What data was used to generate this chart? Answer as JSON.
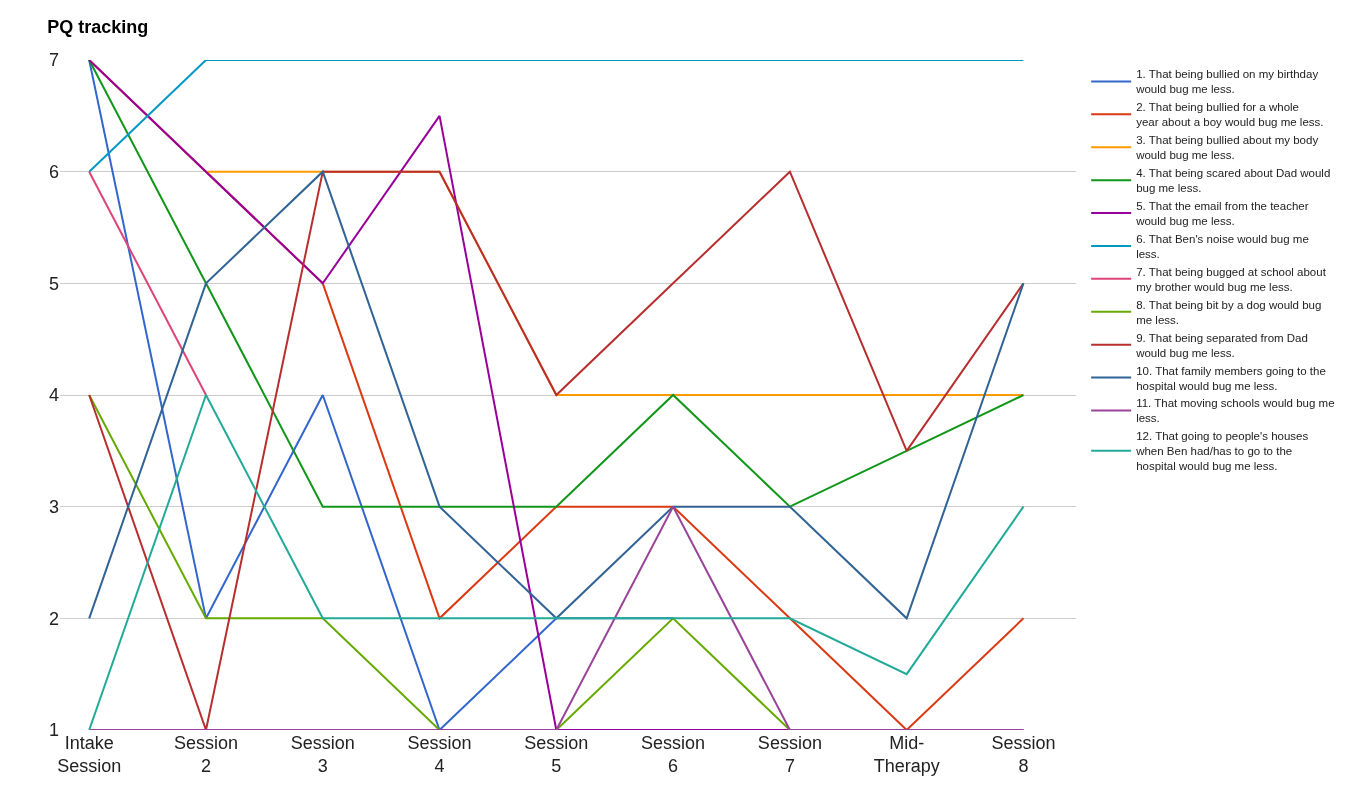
{
  "chart_data": {
    "type": "line",
    "title": "PQ tracking",
    "categories": [
      "Intake Session",
      "Session 2",
      "Session 3",
      "Session 4",
      "Session 5",
      "Session 6",
      "Session 7",
      "Mid-Therapy",
      "Session 8"
    ],
    "ylim": [
      1,
      7
    ],
    "yticks": [
      1,
      2,
      3,
      4,
      5,
      6,
      7
    ],
    "grid": "y",
    "legend": "right",
    "marker": "none",
    "line_style": "solid",
    "series": [
      {
        "name": "1. That being bullied on my birthday would bug me less.",
        "color": "#3366cc",
        "values": [
          7,
          2,
          4,
          1,
          2,
          2,
          null,
          null,
          null
        ]
      },
      {
        "name": "2. That being bullied for a whole year about a boy would bug me less.",
        "color": "#dc3912",
        "values": [
          7,
          6,
          5,
          2,
          3,
          3,
          2,
          1,
          2
        ]
      },
      {
        "name": "3. That being bullied about my body would bug me less.",
        "color": "#ff9900",
        "values": [
          null,
          6,
          6,
          6,
          4,
          4,
          4,
          4,
          4
        ]
      },
      {
        "name": "4. That being scared about Dad would bug me less.",
        "color": "#109618",
        "values": [
          7,
          5,
          3,
          3,
          3,
          4,
          3,
          3.5,
          4
        ]
      },
      {
        "name": "5. That the email from the teacher would bug me less.",
        "color": "#990099",
        "values": [
          7,
          6,
          5,
          6.5,
          1,
          1,
          1,
          1,
          1
        ]
      },
      {
        "name": "6. That Ben's noise would bug me less.",
        "color": "#0099c6",
        "values": [
          6,
          7,
          7,
          7,
          7,
          7,
          7,
          7,
          7
        ]
      },
      {
        "name": "7. That being bugged at school about my brother would bug me less.",
        "color": "#dd4477",
        "values": [
          6,
          4,
          null,
          null,
          null,
          null,
          null,
          null,
          null
        ]
      },
      {
        "name": "8. That being bit by a dog would bug me less.",
        "color": "#66aa00",
        "values": [
          4,
          2,
          2,
          1,
          1,
          2,
          1,
          1,
          null
        ]
      },
      {
        "name": "9. That being separated from Dad would bug me less.",
        "color": "#b82e2e",
        "values": [
          4,
          1,
          6,
          6,
          4,
          5,
          6,
          3.5,
          5
        ]
      },
      {
        "name": "10. That family members going to the hospital would bug me less.",
        "color": "#316395",
        "values": [
          2,
          5,
          6,
          3,
          2,
          3,
          3,
          2,
          5
        ]
      },
      {
        "name": "11. That moving schools would bug me less.",
        "color": "#994499",
        "values": [
          1,
          1,
          1,
          1,
          1,
          3,
          1,
          1,
          1
        ]
      },
      {
        "name": "12. That going to people's houses when Ben had/has to go to the hospital would bug me less.",
        "color": "#22aa99",
        "values": [
          1,
          4,
          2,
          2,
          2,
          2,
          2,
          1.5,
          3
        ]
      }
    ]
  }
}
